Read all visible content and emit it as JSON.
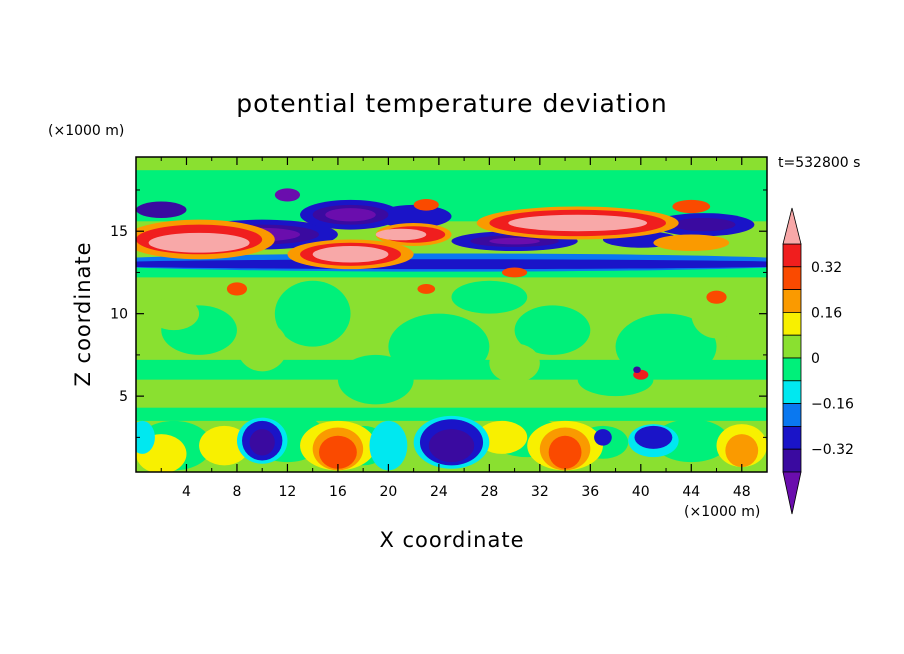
{
  "chart_data": {
    "type": "heatmap",
    "subtype": "filled-contour",
    "title": "potential temperature deviation",
    "xlabel": "X coordinate",
    "ylabel": "Z coordinate",
    "x_unit": "(×1000 m)",
    "y_unit": "(×1000 m)",
    "time_label": "t=532800 s",
    "xlim": [
      0,
      50
    ],
    "ylim": [
      0.4,
      19.5
    ],
    "x_ticks": [
      4,
      8,
      12,
      16,
      20,
      24,
      28,
      32,
      36,
      40,
      44,
      48
    ],
    "y_ticks": [
      5,
      10,
      15
    ],
    "colorbar": {
      "levels": [
        -0.4,
        -0.32,
        -0.24,
        -0.16,
        -0.08,
        0,
        0.08,
        0.16,
        0.24,
        0.32,
        0.4
      ],
      "tick_values": [
        0.32,
        0.16,
        0,
        -0.16,
        -0.32
      ],
      "tick_labels": [
        "0.32",
        "0.16",
        "0",
        "−0.16",
        "−0.32"
      ],
      "colors": [
        "#6a0dad",
        "#3a0aa0",
        "#1a14c8",
        "#0a78f0",
        "#00e8f0",
        "#00f07a",
        "#8ae030",
        "#f8f000",
        "#fa9a00",
        "#fa4a00",
        "#f01e1e",
        "#f8a8a8"
      ],
      "extend": "both"
    },
    "background_value": "0 to 0.08",
    "features": [
      {
        "name": "upper positive layer",
        "x_range": [
          0,
          50
        ],
        "z_range": [
          12.5,
          15.5
        ],
        "peak": "> 0.4"
      },
      {
        "name": "upper negative layer",
        "x_range": [
          0,
          50
        ],
        "z_range": [
          13,
          17
        ],
        "peak": "< -0.4"
      },
      {
        "name": "near-surface cells",
        "x_range": [
          0,
          50
        ],
        "z_range": [
          0.4,
          3.7
        ],
        "peak": "±0.4"
      }
    ]
  }
}
